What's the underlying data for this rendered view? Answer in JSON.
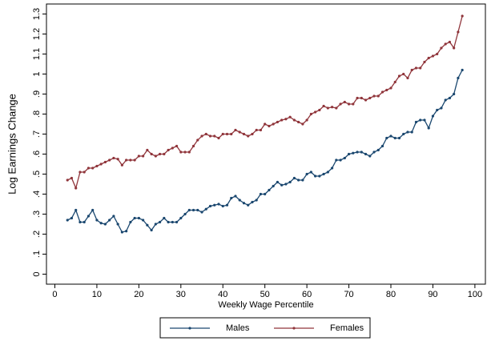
{
  "chart_data": {
    "type": "line",
    "x_label": "Weekly Wage Percentile",
    "y_label": "Log Earnings Change",
    "x": [
      3,
      4,
      5,
      6,
      7,
      8,
      9,
      10,
      11,
      12,
      13,
      14,
      15,
      16,
      17,
      18,
      19,
      20,
      21,
      22,
      23,
      24,
      25,
      26,
      27,
      28,
      29,
      30,
      31,
      32,
      33,
      34,
      35,
      36,
      37,
      38,
      39,
      40,
      41,
      42,
      43,
      44,
      45,
      46,
      47,
      48,
      49,
      50,
      51,
      52,
      53,
      54,
      55,
      56,
      57,
      58,
      59,
      60,
      61,
      62,
      63,
      64,
      65,
      66,
      67,
      68,
      69,
      70,
      71,
      72,
      73,
      74,
      75,
      76,
      77,
      78,
      79,
      80,
      81,
      82,
      83,
      84,
      85,
      86,
      87,
      88,
      89,
      90,
      91,
      92,
      93,
      94,
      95,
      96,
      97
    ],
    "series": [
      {
        "name": "Males",
        "color": "#1a476f",
        "values": [
          0.27,
          0.28,
          0.32,
          0.26,
          0.26,
          0.29,
          0.32,
          0.27,
          0.255,
          0.25,
          0.27,
          0.29,
          0.25,
          0.21,
          0.215,
          0.26,
          0.28,
          0.28,
          0.27,
          0.245,
          0.22,
          0.25,
          0.26,
          0.28,
          0.26,
          0.26,
          0.26,
          0.28,
          0.3,
          0.32,
          0.32,
          0.32,
          0.31,
          0.325,
          0.34,
          0.345,
          0.35,
          0.34,
          0.345,
          0.38,
          0.39,
          0.37,
          0.355,
          0.345,
          0.36,
          0.37,
          0.4,
          0.4,
          0.42,
          0.44,
          0.46,
          0.445,
          0.45,
          0.46,
          0.48,
          0.47,
          0.47,
          0.5,
          0.51,
          0.49,
          0.49,
          0.5,
          0.51,
          0.53,
          0.57,
          0.57,
          0.58,
          0.6,
          0.605,
          0.61,
          0.61,
          0.6,
          0.59,
          0.61,
          0.62,
          0.64,
          0.68,
          0.69,
          0.68,
          0.68,
          0.7,
          0.71,
          0.71,
          0.76,
          0.77,
          0.77,
          0.73,
          0.79,
          0.82,
          0.83,
          0.87,
          0.88,
          0.9,
          0.98,
          1.02
        ]
      },
      {
        "name": "Females",
        "color": "#90353b",
        "values": [
          0.47,
          0.48,
          0.43,
          0.51,
          0.51,
          0.53,
          0.53,
          0.54,
          0.55,
          0.56,
          0.57,
          0.58,
          0.575,
          0.545,
          0.57,
          0.57,
          0.57,
          0.59,
          0.59,
          0.62,
          0.6,
          0.59,
          0.6,
          0.6,
          0.62,
          0.63,
          0.64,
          0.61,
          0.61,
          0.61,
          0.64,
          0.67,
          0.69,
          0.7,
          0.69,
          0.69,
          0.68,
          0.7,
          0.7,
          0.7,
          0.72,
          0.71,
          0.7,
          0.69,
          0.7,
          0.72,
          0.72,
          0.75,
          0.74,
          0.75,
          0.76,
          0.77,
          0.775,
          0.785,
          0.77,
          0.76,
          0.75,
          0.77,
          0.8,
          0.81,
          0.82,
          0.84,
          0.83,
          0.835,
          0.83,
          0.85,
          0.86,
          0.85,
          0.85,
          0.88,
          0.88,
          0.87,
          0.88,
          0.89,
          0.89,
          0.91,
          0.92,
          0.93,
          0.96,
          0.99,
          1.0,
          0.98,
          1.02,
          1.03,
          1.03,
          1.06,
          1.08,
          1.09,
          1.1,
          1.13,
          1.15,
          1.16,
          1.13,
          1.21,
          1.29
        ]
      }
    ],
    "xlim": [
      -2,
      102.5
    ],
    "ylim": [
      -0.05,
      1.35
    ],
    "xticks": [
      0,
      10,
      20,
      30,
      40,
      50,
      60,
      70,
      80,
      90,
      100
    ],
    "yticks": [
      0,
      {
        "value": 0.1,
        "label": ".1"
      },
      {
        "value": 0.2,
        "label": ".2"
      },
      {
        "value": 0.3,
        "label": ".3"
      },
      {
        "value": 0.4,
        "label": ".4"
      },
      {
        "value": 0.5,
        "label": ".5"
      },
      {
        "value": 0.6,
        "label": ".6"
      },
      {
        "value": 0.7,
        "label": ".7"
      },
      {
        "value": 0.8,
        "label": ".8"
      },
      {
        "value": 0.9,
        "label": ".9"
      },
      1,
      1.1,
      1.2,
      1.3
    ],
    "grid": false,
    "legend": "bottom"
  }
}
